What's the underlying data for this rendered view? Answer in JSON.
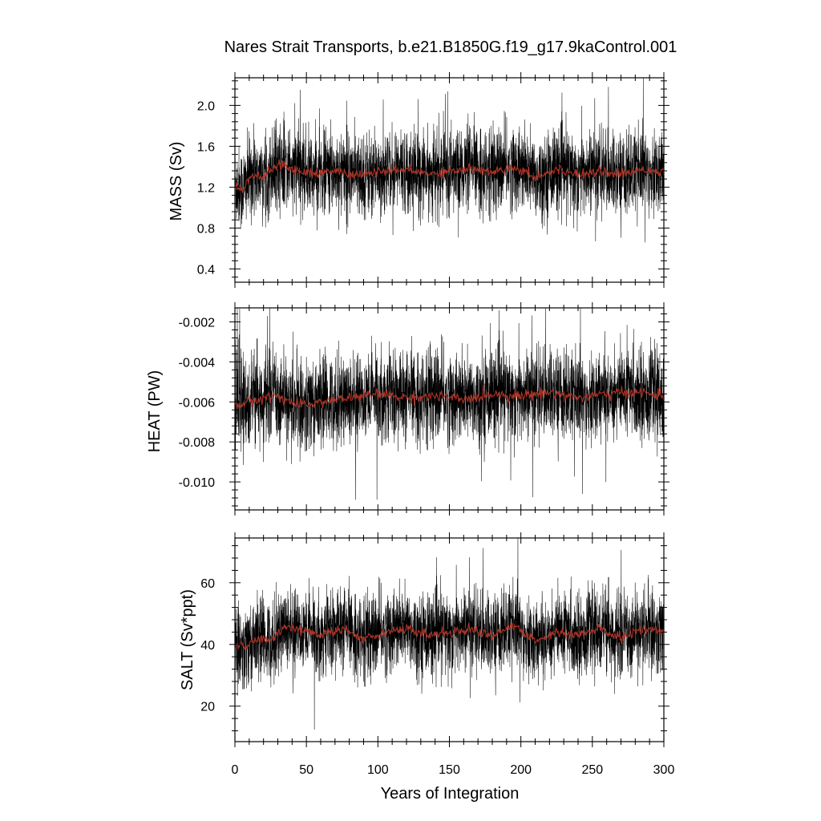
{
  "title": "Nares Strait Transports, b.e21.B1850G.f19_g17.9kaControl.001",
  "colors": {
    "raw_series": "#000000",
    "smoothed_series": "#c0392b",
    "frame": "#000000"
  },
  "chart_data": [
    {
      "type": "line",
      "ylabel": "MASS (Sv)",
      "xlabel": "",
      "xlim": [
        0,
        300
      ],
      "ylim": [
        0.27,
        2.27
      ],
      "yticks": [
        0.4,
        0.8,
        1.2,
        1.6,
        2.0
      ],
      "ytick_labels": [
        "0.4",
        "0.8",
        "1.2",
        "1.6",
        "2.0"
      ],
      "mean": 1.33,
      "sd": 0.2,
      "spike_amplitude": 0.55,
      "smooth_segments": [
        [
          0,
          1.22
        ],
        [
          5,
          1.18
        ],
        [
          12,
          1.32
        ],
        [
          20,
          1.3
        ],
        [
          30,
          1.42
        ],
        [
          40,
          1.38
        ],
        [
          55,
          1.33
        ],
        [
          70,
          1.36
        ],
        [
          85,
          1.31
        ],
        [
          100,
          1.35
        ],
        [
          120,
          1.37
        ],
        [
          135,
          1.33
        ],
        [
          150,
          1.36
        ],
        [
          165,
          1.38
        ],
        [
          180,
          1.35
        ],
        [
          195,
          1.4
        ],
        [
          210,
          1.3
        ],
        [
          225,
          1.37
        ],
        [
          240,
          1.33
        ],
        [
          255,
          1.36
        ],
        [
          270,
          1.32
        ],
        [
          285,
          1.38
        ],
        [
          300,
          1.35
        ]
      ],
      "series": [
        {
          "name": "",
          "kind": "monthly_raw"
        },
        {
          "name": "",
          "kind": "running_mean"
        }
      ]
    },
    {
      "type": "line",
      "ylabel": "HEAT (PW)",
      "xlabel": "",
      "xlim": [
        0,
        300
      ],
      "ylim": [
        -0.0114,
        -0.0013
      ],
      "yticks": [
        -0.01,
        -0.008,
        -0.006,
        -0.004,
        -0.002
      ],
      "ytick_labels": [
        "-0.010",
        "-0.008",
        "-0.006",
        "-0.004",
        "-0.002"
      ],
      "mean": -0.0059,
      "sd": 0.0011,
      "spike_amplitude": 0.0045,
      "smooth_segments": [
        [
          0,
          -0.0062
        ],
        [
          10,
          -0.006
        ],
        [
          20,
          -0.0058
        ],
        [
          30,
          -0.0057
        ],
        [
          45,
          -0.0062
        ],
        [
          60,
          -0.006
        ],
        [
          80,
          -0.0058
        ],
        [
          100,
          -0.0056
        ],
        [
          120,
          -0.0058
        ],
        [
          140,
          -0.0057
        ],
        [
          160,
          -0.0059
        ],
        [
          180,
          -0.0056
        ],
        [
          200,
          -0.0057
        ],
        [
          220,
          -0.0055
        ],
        [
          240,
          -0.0058
        ],
        [
          260,
          -0.0056
        ],
        [
          280,
          -0.0055
        ],
        [
          300,
          -0.0057
        ]
      ],
      "series": [
        {
          "name": "",
          "kind": "monthly_raw"
        },
        {
          "name": "",
          "kind": "running_mean"
        }
      ]
    },
    {
      "type": "line",
      "ylabel": "SALT (Sv*ppt)",
      "xlabel": "Years of Integration",
      "xlim": [
        0,
        300
      ],
      "xticks": [
        0,
        50,
        100,
        150,
        200,
        250,
        300
      ],
      "xtick_labels": [
        "0",
        "50",
        "100",
        "150",
        "200",
        "250",
        "300"
      ],
      "ylim": [
        8.5,
        74.5
      ],
      "yticks": [
        20,
        40,
        60
      ],
      "ytick_labels": [
        "20",
        "40",
        "60"
      ],
      "mean": 43.5,
      "sd": 6.5,
      "spike_amplitude": 18,
      "smooth_segments": [
        [
          0,
          40
        ],
        [
          8,
          39
        ],
        [
          15,
          42
        ],
        [
          25,
          41
        ],
        [
          35,
          46
        ],
        [
          45,
          45
        ],
        [
          60,
          43
        ],
        [
          75,
          45
        ],
        [
          90,
          42
        ],
        [
          105,
          44
        ],
        [
          120,
          45
        ],
        [
          135,
          43
        ],
        [
          150,
          44
        ],
        [
          165,
          45
        ],
        [
          180,
          43
        ],
        [
          195,
          46
        ],
        [
          210,
          41
        ],
        [
          225,
          44
        ],
        [
          240,
          43
        ],
        [
          255,
          45
        ],
        [
          270,
          42
        ],
        [
          285,
          45
        ],
        [
          300,
          44
        ]
      ],
      "series": [
        {
          "name": "",
          "kind": "monthly_raw"
        },
        {
          "name": "",
          "kind": "running_mean"
        }
      ]
    }
  ]
}
